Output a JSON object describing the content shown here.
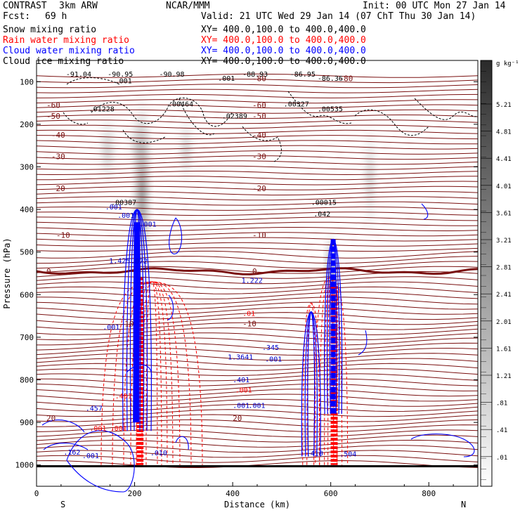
{
  "header": {
    "project": "CONTRAST",
    "model": "3km ARW",
    "institution": "NCAR/MMM",
    "init": "Init: 00 UTC Mon 27 Jan 14",
    "fcst_label": "Fcst:",
    "fcst_value": "69 h",
    "valid": "Valid: 21 UTC Wed 29 Jan 14 (07 ChT Thu 30 Jan 14)"
  },
  "fields": [
    {
      "name": "Snow mixing ratio",
      "xy": "XY= 400.0,100.0 to 400.0,400.0",
      "color": "#000000"
    },
    {
      "name": "Rain water mixing ratio",
      "xy": "XY= 400.0,100.0 to 400.0,400.0",
      "color": "#ff0000"
    },
    {
      "name": "Cloud water mixing ratio",
      "xy": "XY= 400.0,100.0 to 400.0,400.0",
      "color": "#0000ff"
    },
    {
      "name": "Cloud ice mixing ratio",
      "xy": "XY= 400.0,100.0 to 400.0,400.0",
      "color": "#000000"
    }
  ],
  "colorbar": {
    "units": "g kg⁻¹",
    "labels": [
      "5.21",
      "4.81",
      "4.41",
      "4.01",
      "3.61",
      "3.21",
      "2.81",
      "2.41",
      "2.01",
      "1.61",
      "1.21",
      ".81",
      ".41",
      ".01"
    ]
  },
  "chart_data": {
    "type": "contour",
    "xlabel": "Distance (km)",
    "ylabel": "Pressure (hPa)",
    "xlim": [
      0,
      900
    ],
    "ylim": [
      1050,
      50
    ],
    "x_ticks": [
      0,
      200,
      400,
      600,
      800
    ],
    "y_ticks": [
      100,
      200,
      300,
      400,
      500,
      600,
      700,
      800,
      900,
      1000
    ],
    "x_end_labels": {
      "left": "S",
      "right": "N"
    },
    "temperature_isotherms_c": [
      {
        "t": -80,
        "p": 92
      },
      {
        "t": -60,
        "p": 155
      },
      {
        "t": -50,
        "p": 180
      },
      {
        "t": -40,
        "p": 225
      },
      {
        "t": -30,
        "p": 275
      },
      {
        "t": -20,
        "p": 350
      },
      {
        "t": -10,
        "p": 460
      },
      {
        "t": 0,
        "p": 545
      },
      {
        "t": -10,
        "p": 668
      },
      {
        "t": 20,
        "p": 890
      }
    ],
    "upper_labels": [
      {
        "text": "-91.04",
        "x": 60,
        "p": 88
      },
      {
        "text": "-90.95",
        "x": 145,
        "p": 88
      },
      {
        "text": "-90.98",
        "x": 250,
        "p": 88
      },
      {
        "text": "-88.93",
        "x": 420,
        "p": 88
      },
      {
        "text": "-86.95",
        "x": 517,
        "p": 88
      },
      {
        "text": "-86.36",
        "x": 573,
        "p": 98
      },
      {
        "text": ".001",
        "x": 160,
        "p": 104
      },
      {
        "text": ".001",
        "x": 370,
        "p": 98
      },
      {
        "text": ".01228",
        "x": 107,
        "p": 170
      },
      {
        "text": ".00464",
        "x": 268,
        "p": 158
      },
      {
        "text": ".02389",
        "x": 378,
        "p": 186
      },
      {
        "text": ".00327",
        "x": 504,
        "p": 158
      },
      {
        "text": ".00535",
        "x": 573,
        "p": 170
      },
      {
        "text": ".00387",
        "x": 152,
        "p": 389
      },
      {
        "text": ".00015",
        "x": 560,
        "p": 389
      },
      {
        "text": ".042",
        "x": 565,
        "p": 416
      }
    ],
    "cloud_water_labels": [
      {
        "text": ".001",
        "x": 140,
        "p": 400
      },
      {
        "text": ".001",
        "x": 165,
        "p": 420
      },
      {
        "text": ".001",
        "x": 210,
        "p": 440
      },
      {
        "text": "1.425",
        "x": 148,
        "p": 526
      },
      {
        "text": ".072",
        "x": 192,
        "p": 527
      },
      {
        "text": ".001",
        "x": 135,
        "p": 682
      },
      {
        "text": "1.222",
        "x": 418,
        "p": 572
      },
      {
        "text": "1.3641",
        "x": 390,
        "p": 752
      },
      {
        "text": ".345",
        "x": 460,
        "p": 730
      },
      {
        "text": ".001",
        "x": 466,
        "p": 757
      },
      {
        "text": ".401",
        "x": 400,
        "p": 806
      },
      {
        "text": ".457",
        "x": 100,
        "p": 873
      },
      {
        "text": ".001",
        "x": 400,
        "p": 866
      },
      {
        "text": ".001",
        "x": 432,
        "p": 866
      },
      {
        "text": ".162",
        "x": 55,
        "p": 976
      },
      {
        "text": ".001",
        "x": 93,
        "p": 984
      },
      {
        "text": ".010",
        "x": 232,
        "p": 977
      },
      {
        "text": ".410",
        "x": 550,
        "p": 978
      },
      {
        "text": ".504",
        "x": 618,
        "p": 980
      }
    ],
    "rain_labels": [
      {
        "text": ".001",
        "x": 108,
        "p": 920
      },
      {
        "text": ".001",
        "x": 150,
        "p": 920
      },
      {
        "text": ".401",
        "x": 160,
        "p": 844
      },
      {
        "text": ".001",
        "x": 405,
        "p": 830
      },
      {
        "text": ".01",
        "x": 420,
        "p": 650
      }
    ]
  }
}
